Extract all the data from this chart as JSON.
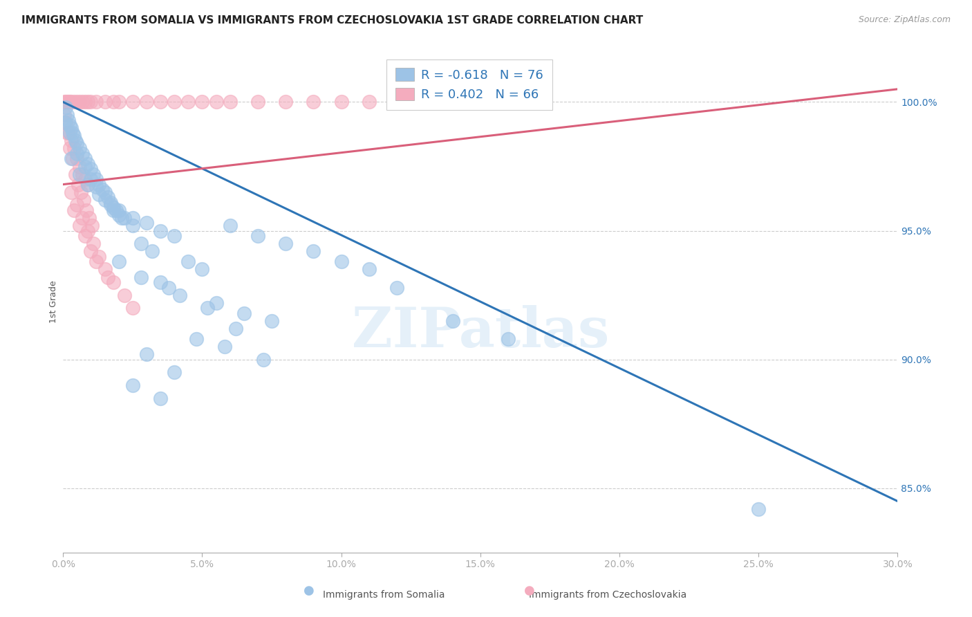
{
  "title": "IMMIGRANTS FROM SOMALIA VS IMMIGRANTS FROM CZECHOSLOVAKIA 1ST GRADE CORRELATION CHART",
  "source": "Source: ZipAtlas.com",
  "ylabel": "1st Grade",
  "xlim": [
    0.0,
    30.0
  ],
  "ylim": [
    82.5,
    102.0
  ],
  "yticks": [
    85.0,
    90.0,
    95.0,
    100.0
  ],
  "ytick_labels": [
    "85.0%",
    "90.0%",
    "95.0%",
    "100.0%"
  ],
  "xticks": [
    0.0,
    5.0,
    10.0,
    15.0,
    20.0,
    25.0,
    30.0
  ],
  "legend_blue_r": "R = -0.618",
  "legend_blue_n": "N = 76",
  "legend_pink_r": "R = 0.402",
  "legend_pink_n": "N = 66",
  "blue_color": "#9DC3E6",
  "pink_color": "#F4ACBE",
  "blue_line_color": "#2E75B6",
  "pink_line_color": "#D95F7A",
  "watermark": "ZIPatlas",
  "background_color": "#FFFFFF",
  "blue_scatter": [
    [
      0.1,
      99.8
    ],
    [
      0.15,
      99.5
    ],
    [
      0.2,
      99.3
    ],
    [
      0.25,
      99.1
    ],
    [
      0.3,
      99.0
    ],
    [
      0.35,
      98.8
    ],
    [
      0.4,
      98.7
    ],
    [
      0.45,
      98.5
    ],
    [
      0.5,
      98.4
    ],
    [
      0.6,
      98.2
    ],
    [
      0.7,
      98.0
    ],
    [
      0.8,
      97.8
    ],
    [
      0.9,
      97.6
    ],
    [
      1.0,
      97.4
    ],
    [
      1.1,
      97.2
    ],
    [
      1.2,
      97.0
    ],
    [
      1.3,
      96.8
    ],
    [
      1.4,
      96.6
    ],
    [
      1.5,
      96.5
    ],
    [
      1.6,
      96.3
    ],
    [
      1.7,
      96.1
    ],
    [
      1.8,
      95.9
    ],
    [
      1.9,
      95.8
    ],
    [
      2.0,
      95.6
    ],
    [
      2.1,
      95.5
    ],
    [
      0.05,
      99.2
    ],
    [
      0.25,
      98.8
    ],
    [
      0.5,
      98.0
    ],
    [
      0.8,
      97.5
    ],
    [
      1.0,
      97.0
    ],
    [
      1.2,
      96.7
    ],
    [
      1.5,
      96.2
    ],
    [
      1.8,
      95.8
    ],
    [
      2.2,
      95.5
    ],
    [
      2.5,
      95.2
    ],
    [
      0.3,
      97.8
    ],
    [
      0.6,
      97.2
    ],
    [
      0.9,
      96.8
    ],
    [
      1.3,
      96.4
    ],
    [
      1.7,
      96.0
    ],
    [
      2.0,
      95.8
    ],
    [
      2.5,
      95.5
    ],
    [
      3.0,
      95.3
    ],
    [
      3.5,
      95.0
    ],
    [
      4.0,
      94.8
    ],
    [
      2.8,
      94.5
    ],
    [
      3.2,
      94.2
    ],
    [
      4.5,
      93.8
    ],
    [
      5.0,
      93.5
    ],
    [
      6.0,
      95.2
    ],
    [
      7.0,
      94.8
    ],
    [
      8.0,
      94.5
    ],
    [
      9.0,
      94.2
    ],
    [
      10.0,
      93.8
    ],
    [
      11.0,
      93.5
    ],
    [
      3.5,
      93.0
    ],
    [
      4.2,
      92.5
    ],
    [
      5.5,
      92.2
    ],
    [
      6.5,
      91.8
    ],
    [
      7.5,
      91.5
    ],
    [
      2.0,
      93.8
    ],
    [
      2.8,
      93.2
    ],
    [
      3.8,
      92.8
    ],
    [
      5.2,
      92.0
    ],
    [
      6.2,
      91.2
    ],
    [
      4.8,
      90.8
    ],
    [
      5.8,
      90.5
    ],
    [
      7.2,
      90.0
    ],
    [
      3.0,
      90.2
    ],
    [
      4.0,
      89.5
    ],
    [
      2.5,
      89.0
    ],
    [
      3.5,
      88.5
    ],
    [
      12.0,
      92.8
    ],
    [
      14.0,
      91.5
    ],
    [
      16.0,
      90.8
    ],
    [
      25.0,
      84.2
    ]
  ],
  "pink_scatter": [
    [
      0.05,
      100.0
    ],
    [
      0.1,
      100.0
    ],
    [
      0.15,
      100.0
    ],
    [
      0.2,
      100.0
    ],
    [
      0.25,
      100.0
    ],
    [
      0.3,
      100.0
    ],
    [
      0.4,
      100.0
    ],
    [
      0.5,
      100.0
    ],
    [
      0.6,
      100.0
    ],
    [
      0.7,
      100.0
    ],
    [
      0.8,
      100.0
    ],
    [
      0.9,
      100.0
    ],
    [
      1.0,
      100.0
    ],
    [
      1.2,
      100.0
    ],
    [
      1.5,
      100.0
    ],
    [
      1.8,
      100.0
    ],
    [
      2.0,
      100.0
    ],
    [
      2.5,
      100.0
    ],
    [
      3.0,
      100.0
    ],
    [
      3.5,
      100.0
    ],
    [
      4.0,
      100.0
    ],
    [
      4.5,
      100.0
    ],
    [
      5.0,
      100.0
    ],
    [
      5.5,
      100.0
    ],
    [
      6.0,
      100.0
    ],
    [
      7.0,
      100.0
    ],
    [
      8.0,
      100.0
    ],
    [
      9.0,
      100.0
    ],
    [
      10.0,
      100.0
    ],
    [
      11.0,
      100.0
    ],
    [
      0.05,
      99.5
    ],
    [
      0.1,
      99.2
    ],
    [
      0.2,
      98.8
    ],
    [
      0.3,
      98.5
    ],
    [
      0.4,
      98.2
    ],
    [
      0.5,
      97.8
    ],
    [
      0.6,
      97.5
    ],
    [
      0.7,
      97.2
    ],
    [
      0.8,
      97.0
    ],
    [
      0.9,
      96.8
    ],
    [
      0.15,
      98.8
    ],
    [
      0.25,
      98.2
    ],
    [
      0.35,
      97.8
    ],
    [
      0.45,
      97.2
    ],
    [
      0.55,
      96.8
    ],
    [
      0.65,
      96.5
    ],
    [
      0.75,
      96.2
    ],
    [
      0.85,
      95.8
    ],
    [
      0.95,
      95.5
    ],
    [
      1.05,
      95.2
    ],
    [
      0.3,
      96.5
    ],
    [
      0.5,
      96.0
    ],
    [
      0.7,
      95.5
    ],
    [
      0.9,
      95.0
    ],
    [
      1.1,
      94.5
    ],
    [
      1.3,
      94.0
    ],
    [
      1.5,
      93.5
    ],
    [
      1.8,
      93.0
    ],
    [
      2.2,
      92.5
    ],
    [
      2.5,
      92.0
    ],
    [
      0.4,
      95.8
    ],
    [
      0.6,
      95.2
    ],
    [
      0.8,
      94.8
    ],
    [
      1.0,
      94.2
    ],
    [
      1.2,
      93.8
    ],
    [
      1.6,
      93.2
    ]
  ],
  "blue_trendline_x": [
    0.0,
    30.0
  ],
  "blue_trendline_y": [
    100.0,
    84.5
  ],
  "pink_trendline_x": [
    0.0,
    30.0
  ],
  "pink_trendline_y": [
    96.8,
    100.5
  ]
}
